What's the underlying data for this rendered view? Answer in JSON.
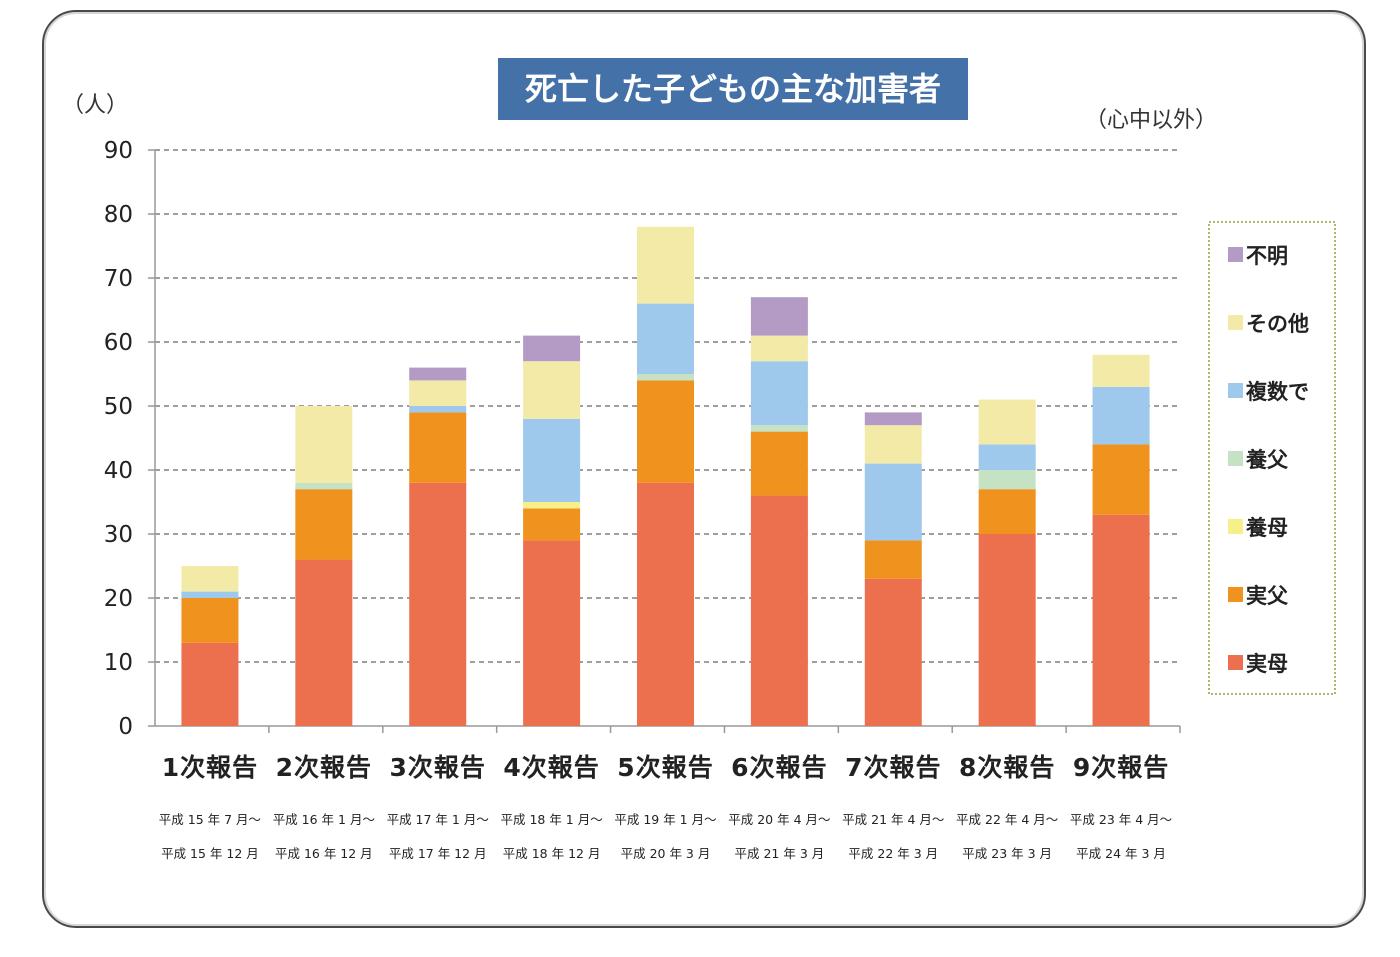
{
  "chart_data": {
    "type": "bar",
    "stacked": true,
    "title": "死亡した子どもの主な加害者",
    "unit_label": "（人）",
    "note": "（心中以外）",
    "ylim": [
      0,
      90
    ],
    "yticks": [
      0,
      10,
      20,
      30,
      40,
      50,
      60,
      70,
      80,
      90
    ],
    "grid": true,
    "legend_position": "right",
    "categories": [
      "1次報告",
      "2次報告",
      "3次報告",
      "4次報告",
      "5次報告",
      "6次報告",
      "7次報告",
      "8次報告",
      "9次報告"
    ],
    "periods": [
      [
        "平成 15 年 7 月～",
        "平成 15 年 12 月"
      ],
      [
        "平成 16 年 1 月～",
        "平成 16 年 12 月"
      ],
      [
        "平成 17 年 1 月～",
        "平成 17 年 12 月"
      ],
      [
        "平成 18 年 1 月～",
        "平成 18 年 12 月"
      ],
      [
        "平成 19 年 1 月～",
        "平成 20 年 3 月"
      ],
      [
        "平成 20 年 4 月～",
        "平成 21 年 3 月"
      ],
      [
        "平成 21 年 4 月～",
        "平成 22 年 3 月"
      ],
      [
        "平成 22 年 4 月～",
        "平成 23 年 3 月"
      ],
      [
        "平成 23 年 4 月～",
        "平成 24 年 3 月"
      ]
    ],
    "series": [
      {
        "name": "実母",
        "color": "#ec6f4e",
        "values": [
          13,
          26,
          38,
          29,
          38,
          36,
          23,
          30,
          33
        ]
      },
      {
        "name": "実父",
        "color": "#f0921e",
        "values": [
          7,
          11,
          11,
          5,
          16,
          10,
          6,
          7,
          11
        ]
      },
      {
        "name": "養母",
        "color": "#f7f08a",
        "values": [
          0,
          0,
          0,
          1,
          0,
          0,
          0,
          0,
          0
        ]
      },
      {
        "name": "養父",
        "color": "#c6e2c4",
        "values": [
          0,
          1,
          0,
          0,
          1,
          1,
          0,
          3,
          0
        ]
      },
      {
        "name": "複数で",
        "color": "#9ec8ec",
        "values": [
          1,
          0,
          1,
          13,
          11,
          10,
          12,
          4,
          9
        ]
      },
      {
        "name": "その他",
        "color": "#f4eaa8",
        "values": [
          4,
          12,
          4,
          9,
          12,
          4,
          6,
          7,
          5
        ]
      },
      {
        "name": "不明",
        "color": "#b49bc6",
        "values": [
          0,
          0,
          2,
          4,
          0,
          6,
          2,
          0,
          0
        ]
      }
    ]
  }
}
